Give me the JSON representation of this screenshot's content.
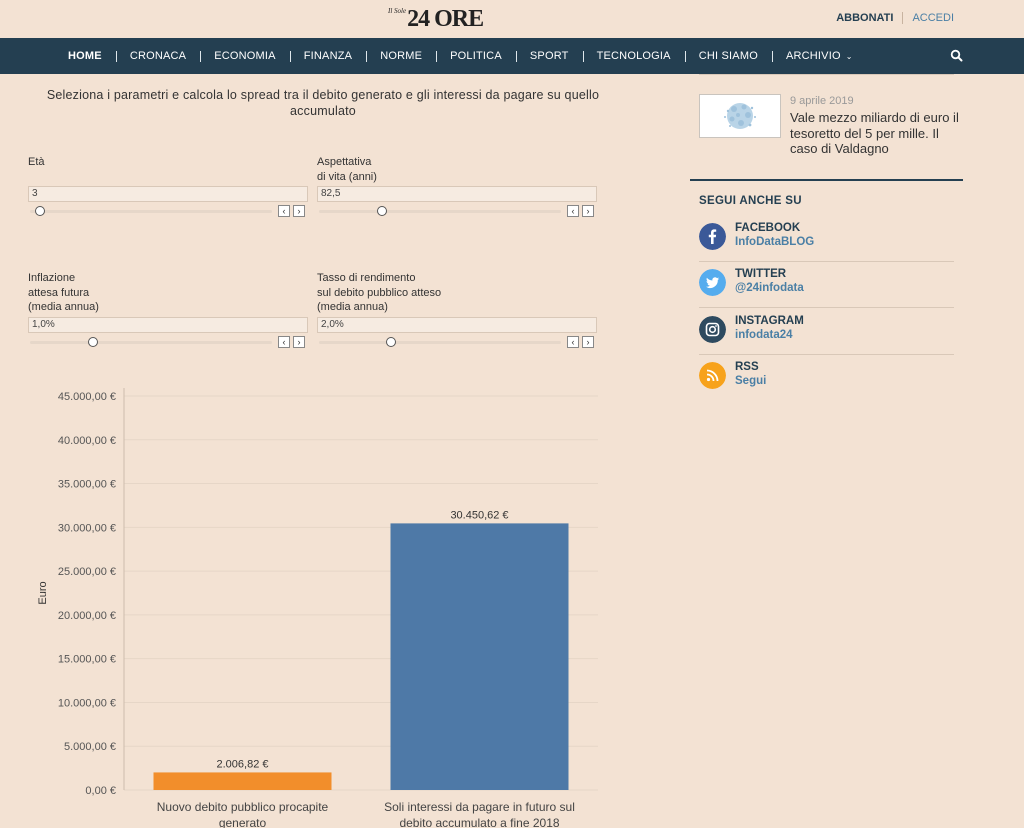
{
  "header": {
    "logo_small": "Il Sole",
    "logo_big": "24 ORE",
    "subscribe_label": "ABBONATI",
    "login_label": "ACCEDI"
  },
  "nav": {
    "items": [
      {
        "label": "HOME"
      },
      {
        "label": "CRONACA"
      },
      {
        "label": "ECONOMIA"
      },
      {
        "label": "FINANZA"
      },
      {
        "label": "NORME"
      },
      {
        "label": "POLITICA"
      },
      {
        "label": "SPORT"
      },
      {
        "label": "TECNOLOGIA"
      },
      {
        "label": "CHI SIAMO"
      },
      {
        "label": "ARCHIVIO"
      }
    ],
    "search_icon": "search-icon"
  },
  "calculator": {
    "intro": "Seleziona i parametri e calcola lo spread tra il debito generato e gli interessi da pagare su quello accumulato",
    "params": [
      {
        "label": "Età",
        "value": "3",
        "slider_level": 0.02
      },
      {
        "label": "Aspettativa\ndi vita (anni)",
        "value": "82,5",
        "slider_level": 0.25
      },
      {
        "label": "Inflazione\nattesa futura\n(media annua)",
        "value": "1,0%",
        "slider_level": 0.25
      },
      {
        "label": "Tasso di rendimento\nsul debito pubblico atteso\n(media annua)",
        "value": "2,0%",
        "slider_level": 0.29
      }
    ]
  },
  "chart_data": {
    "type": "bar",
    "categories": [
      "Nuovo debito pubblico procapite generato",
      "Soli interessi da pagare in futuro sul debito accumulato a fine 2018"
    ],
    "values": [
      2006.82,
      30450.62
    ],
    "data_labels": [
      "2.006,82 €",
      "30.450,62 €"
    ],
    "colors": [
      "#f28e2b",
      "#4e79a7"
    ],
    "ylabel": "Euro",
    "ylim": [
      0,
      45000
    ],
    "yticks": [
      0,
      5000,
      10000,
      15000,
      20000,
      25000,
      30000,
      35000,
      40000,
      45000
    ],
    "ytick_labels": [
      "0,00 €",
      "5.000,00 €",
      "10.000,00 €",
      "15.000,00 €",
      "20.000,00 €",
      "25.000,00 €",
      "30.000,00 €",
      "35.000,00 €",
      "40.000,00 €",
      "45.000,00 €"
    ],
    "grid": true
  },
  "sidebar": {
    "article": {
      "date": "9 aprile 2019",
      "headline": "Vale mezzo miliardo di euro il tesoretto del 5 per mille. Il caso di Valdagno"
    },
    "follow_title": "SEGUI ANCHE SU",
    "socials": [
      {
        "name": "FACEBOOK",
        "handle": "InfoDataBLOG",
        "icon": "facebook-icon",
        "color": "#3b5998"
      },
      {
        "name": "TWITTER",
        "handle": "@24infodata",
        "icon": "twitter-icon",
        "color": "#55acee"
      },
      {
        "name": "INSTAGRAM",
        "handle": "infodata24",
        "icon": "instagram-icon",
        "color": "#2e4a5f"
      },
      {
        "name": "RSS",
        "handle": "Segui",
        "icon": "rss-icon",
        "color": "#f7a21b"
      }
    ]
  }
}
